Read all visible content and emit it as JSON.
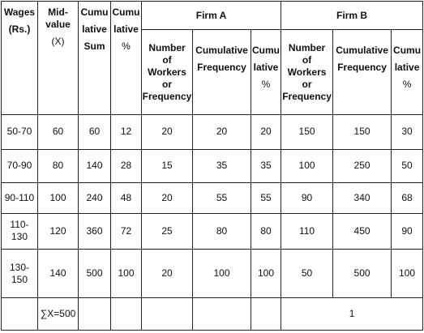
{
  "header": {
    "wages": [
      "Wages",
      "(Rs.)"
    ],
    "mid_value": [
      "Mid-",
      "value",
      "(X)"
    ],
    "cum_sum": [
      "Cumu",
      "lative",
      "Sum"
    ],
    "cum_pct": [
      "Cumu",
      "lative",
      "%"
    ],
    "firm_a": "Firm A",
    "firm_b": "Firm B",
    "workers": [
      "Number",
      "of",
      "Workers",
      "or",
      "Frequency"
    ],
    "cum_freq": [
      "Cumulative",
      "Frequency"
    ],
    "sub_cum_pct": [
      "Cumu",
      "lative",
      "%"
    ]
  },
  "rows": [
    {
      "wages": "50-70",
      "mid": "60",
      "cum_sum": "60",
      "cum_pct": "12",
      "a_workers": "20",
      "a_cum_freq": "20",
      "a_cum_pct": "20",
      "b_workers": "150",
      "b_cum_freq": "150",
      "b_cum_pct": "30"
    },
    {
      "wages": "70-90",
      "mid": "80",
      "cum_sum": "140",
      "cum_pct": "28",
      "a_workers": "15",
      "a_cum_freq": "35",
      "a_cum_pct": "35",
      "b_workers": "100",
      "b_cum_freq": "250",
      "b_cum_pct": "50"
    },
    {
      "wages": "90-110",
      "mid": "100",
      "cum_sum": "240",
      "cum_pct": "48",
      "a_workers": "20",
      "a_cum_freq": "55",
      "a_cum_pct": "55",
      "b_workers": "90",
      "b_cum_freq": "340",
      "b_cum_pct": "68"
    },
    {
      "wages": "110-130",
      "mid": "120",
      "cum_sum": "360",
      "cum_pct": "72",
      "a_workers": "25",
      "a_cum_freq": "80",
      "a_cum_pct": "80",
      "b_workers": "110",
      "b_cum_freq": "450",
      "b_cum_pct": "90"
    },
    {
      "wages": "130-150",
      "mid": "140",
      "cum_sum": "500",
      "cum_pct": "100",
      "a_workers": "20",
      "a_cum_freq": "100",
      "a_cum_pct": "100",
      "b_workers": "50",
      "b_cum_freq": "500",
      "b_cum_pct": "100"
    }
  ],
  "footer": {
    "sum_x": "∑X=500",
    "b_total": "1"
  }
}
